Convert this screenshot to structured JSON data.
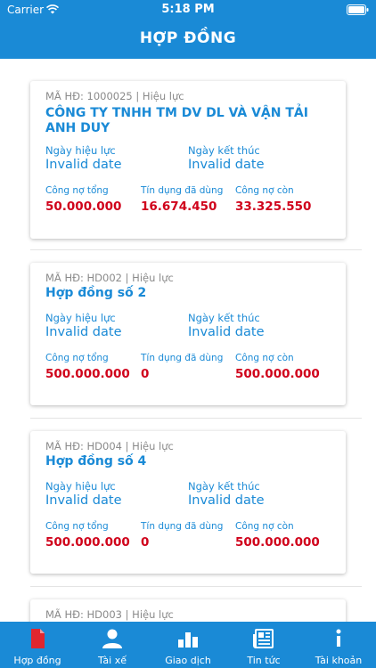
{
  "status_bar": {
    "carrier": "Carrier",
    "time": "5:18 PM"
  },
  "header": {
    "title": "HỢP ĐỒNG"
  },
  "contracts": [
    {
      "meta": "MÃ HĐ: 1000025 | Hiệu lực",
      "name": "CÔNG TY TNHH TM DV DL VÀ VẬN TẢI ANH DUY",
      "start_label": "Ngày hiệu lực",
      "start_value": "Invalid date",
      "end_label": "Ngày kết thúc",
      "end_value": "Invalid date",
      "total_label": "Công nợ tổng",
      "total_value": "50.000.000",
      "used_label": "Tín dụng đã dùng",
      "used_value": "16.674.450",
      "remaining_label": "Công nợ còn",
      "remaining_value": "33.325.550"
    },
    {
      "meta": "MÃ HĐ: HD002 | Hiệu lực",
      "name": "Hợp đồng số 2",
      "start_label": "Ngày hiệu lực",
      "start_value": "Invalid date",
      "end_label": "Ngày kết thúc",
      "end_value": "Invalid date",
      "total_label": "Công nợ tổng",
      "total_value": "500.000.000",
      "used_label": "Tín dụng đã dùng",
      "used_value": "0",
      "remaining_label": "Công nợ còn",
      "remaining_value": "500.000.000"
    },
    {
      "meta": "MÃ HĐ: HD004 | Hiệu lực",
      "name": "Hợp đồng số 4",
      "start_label": "Ngày hiệu lực",
      "start_value": "Invalid date",
      "end_label": "Ngày kết thúc",
      "end_value": "Invalid date",
      "total_label": "Công nợ tổng",
      "total_value": "500.000.000",
      "used_label": "Tín dụng đã dùng",
      "used_value": "0",
      "remaining_label": "Công nợ còn",
      "remaining_value": "500.000.000"
    },
    {
      "meta": "MÃ HĐ: HD003 | Hiệu lực"
    }
  ],
  "tabs": [
    {
      "label": "Hợp đồng",
      "icon": "contract-document-icon",
      "active": true
    },
    {
      "label": "Tài xế",
      "icon": "driver-person-icon",
      "active": false
    },
    {
      "label": "Giao dịch",
      "icon": "transactions-bar-chart-icon",
      "active": false
    },
    {
      "label": "Tin tức",
      "icon": "news-newspaper-icon",
      "active": false
    },
    {
      "label": "Tài khoản",
      "icon": "account-info-icon",
      "active": false
    }
  ],
  "colors": {
    "primary": "#1a8ad6",
    "money": "#d0021b",
    "active_tab_icon": "#e0262e",
    "meta_text": "#8a8a8a"
  }
}
